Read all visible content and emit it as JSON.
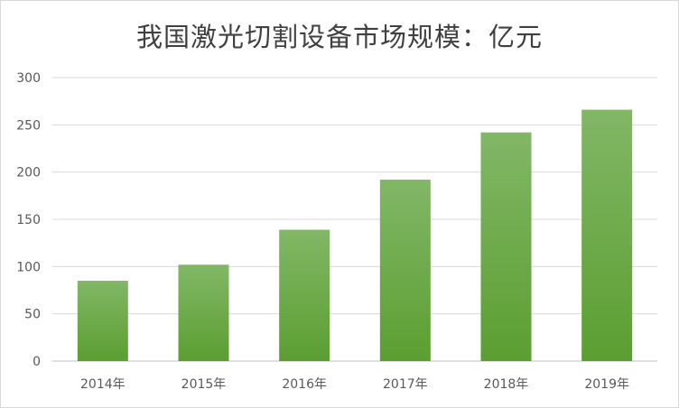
{
  "chart_data": {
    "type": "bar",
    "title": "我国激光切割设备市场规模：亿元",
    "categories": [
      "2014年",
      "2015年",
      "2016年",
      "2017年",
      "2018年",
      "2019年"
    ],
    "values": [
      85,
      102,
      139,
      192,
      242,
      266
    ],
    "ylim": [
      0,
      300
    ],
    "yticks": [
      0,
      50,
      100,
      150,
      200,
      250,
      300
    ],
    "grid": true,
    "legend": "none",
    "colors": {
      "bar_top": "#82b766",
      "bar_bottom": "#5b9e31",
      "grid": "#d9d9d9",
      "axis": "#bfbfbf"
    }
  }
}
